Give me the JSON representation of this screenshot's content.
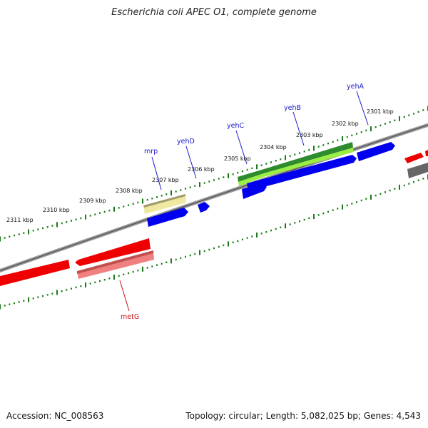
{
  "title": "Escherichia coli APEC O1, complete genome",
  "footer": {
    "accession": "Accession: NC_008563",
    "summary": "Topology: circular; Length: 5,082,025 bp; Genes: 4,543"
  },
  "kbp_labels": [
    "2301 kbp",
    "2302 kbp",
    "2303 kbp",
    "2304 kbp",
    "2305 kbp",
    "2306 kbp",
    "2307 kbp",
    "2308 kbp",
    "2309 kbp",
    "2310 kbp",
    "2311 kbp"
  ],
  "genes": {
    "yehA": {
      "label": "yehA",
      "color": "#1a1acc"
    },
    "yehB": {
      "label": "yehB",
      "color": "#1a1acc"
    },
    "yehC": {
      "label": "yehC",
      "color": "#1a1acc"
    },
    "yehD": {
      "label": "yehD",
      "color": "#1a1acc"
    },
    "mrp": {
      "label": "mrp",
      "color": "#1a1acc"
    },
    "metG": {
      "label": "metG",
      "color": "#cc1111"
    }
  },
  "colors": {
    "backbone": "#808080",
    "cds_forward": "#0000ee",
    "cds_reverse": "#ee0000",
    "tick_green": "#1a7a1a",
    "light_green": "#99ee44",
    "dark_green": "#2e8b2e",
    "khaki": "#eee8a0",
    "pink": "#f08080",
    "grey": "#666666"
  }
}
